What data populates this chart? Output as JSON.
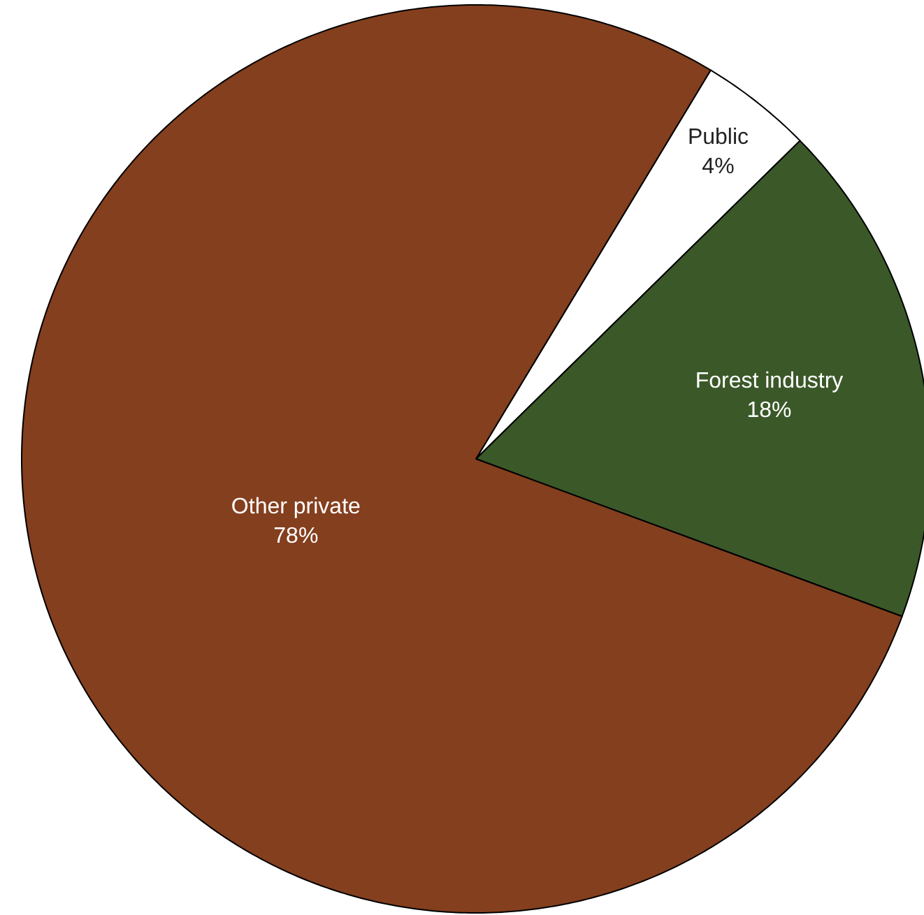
{
  "chart_data": {
    "type": "pie",
    "categories": [
      "Public",
      "Forest industry",
      "Other private"
    ],
    "values": [
      4,
      18,
      78
    ],
    "colors": [
      "#ffffff",
      "#3b5829",
      "#843f1e"
    ],
    "value_labels": [
      "4%",
      "18%",
      "78%"
    ]
  }
}
